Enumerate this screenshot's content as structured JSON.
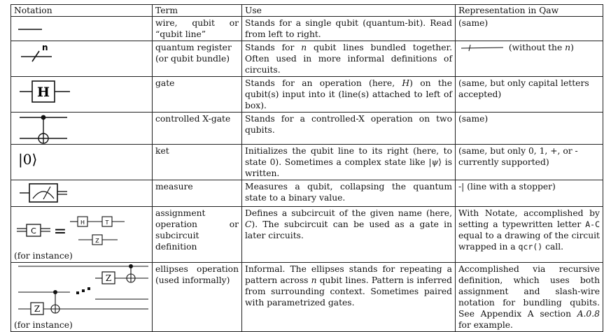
{
  "headers": {
    "notation": "Notation",
    "term": "Term",
    "use": "Use",
    "representation": "Representation in Qaw"
  },
  "rows": [
    {
      "term": "wire, qubit or “qubit line”",
      "use": "Stands for a single qubit (quantum-bit). Read from left to right.",
      "rep": "(same)"
    },
    {
      "notation_label": "n",
      "term": "quantum register (or qubit bundle)",
      "use": "Stands for n qubit lines bundled together. Often used in more informal definitions of circuits.",
      "rep": "(without the n)"
    },
    {
      "notation_label": "H",
      "term": "gate",
      "use": "Stands for an operation (here, H) on the qubit(s) input into it (line(s) attached to left of box).",
      "rep": "(same, but only capital letters accepted)"
    },
    {
      "term": "controlled X-gate",
      "use": "Stands for a controlled-X operation on two qubits.",
      "rep": "(same)"
    },
    {
      "notation_label": "|0⟩",
      "term": "ket",
      "use": "Initializes the qubit line to its right (here, to state 0). Sometimes a complex state like |ψ⟩ is written.",
      "rep": "(same, but only 0, 1, +, or - currently supported)"
    },
    {
      "term": "measure",
      "use": "Measures a qubit, collapsing the quantum state to a binary value.",
      "rep_symbol": "-|",
      "rep": "(line with a stopper)"
    },
    {
      "notation_labels": [
        "C",
        "=",
        "H",
        "T",
        "Z"
      ],
      "notation_caption": "(for instance)",
      "term": "assignment operation or subcircuit definition",
      "use": "Defines a subcircuit of the given name (here, C). The subcircuit can be used as a gate in later circuits.",
      "rep_parts": [
        "With Notate, accomplished by setting a typewritten letter ",
        "A-C",
        " equal to a drawing of the circuit wrapped in a ",
        "qcr()",
        " call."
      ]
    },
    {
      "notation_labels": [
        "Z",
        "Z"
      ],
      "notation_caption": "(for instance)",
      "term": "ellipses operation (used informally)",
      "use": "Informal. The ellipses stands for repeating a pattern across n qubit lines. Pattern is inferred from surrounding context. Sometimes paired with parametrized gates.",
      "rep": "Accomplished via recursive definition, which uses both assignment and slash-wire notation for bundling qubits. See Appendix A section A.0.8 for example."
    }
  ]
}
